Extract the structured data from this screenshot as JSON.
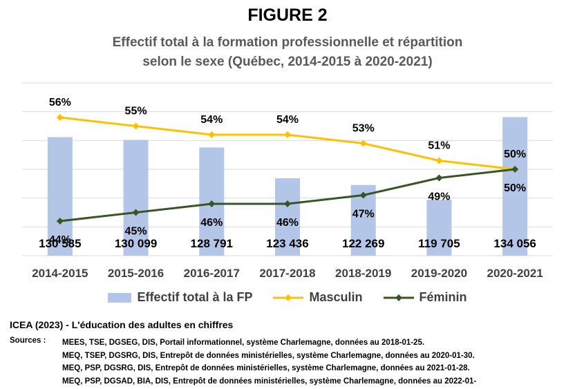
{
  "figure_label": "FIGURE 2",
  "subtitle_lines": [
    "Effectif total à la formation professionnelle et répartition",
    "selon le sexe (Québec, 2014-2015 à 2020-2021)"
  ],
  "colors": {
    "bars": "#b4c6e7",
    "masculin": "#ffc000",
    "feminin": "#375623",
    "gridline": "#d9d9d9"
  },
  "chart_data": {
    "type": "bar",
    "categories": [
      "2014-2015",
      "2015-2016",
      "2016-2017",
      "2017-2018",
      "2018-2019",
      "2019-2020",
      "2020-2021"
    ],
    "series": [
      {
        "name": "Effectif total à la FP",
        "type": "bar",
        "values": [
          130585,
          130099,
          128791,
          123436,
          122269,
          119705,
          134056
        ],
        "labels": [
          "130 585",
          "130 099",
          "128 791",
          "123 436",
          "122 269",
          "119 705",
          "134 056"
        ]
      },
      {
        "name": "Masculin",
        "type": "line",
        "axis": "secondary",
        "values": [
          56,
          55,
          54,
          54,
          53,
          51,
          50
        ],
        "labels": [
          "56%",
          "55%",
          "54%",
          "54%",
          "53%",
          "51%",
          "50%"
        ]
      },
      {
        "name": "Féminin",
        "type": "line",
        "axis": "secondary",
        "values": [
          44,
          45,
          46,
          46,
          47,
          49,
          50
        ],
        "labels": [
          "44%",
          "45%",
          "46%",
          "46%",
          "47%",
          "49%",
          "50%"
        ]
      }
    ],
    "bar_axis_range": [
      110000,
      140000
    ],
    "line_axis_range": [
      40,
      60
    ],
    "grid": true,
    "legend": "bottom"
  },
  "legend": {
    "total": "Effectif total à la FP",
    "masculin": "Masculin",
    "feminin": "Féminin"
  },
  "credit": "ICEA (2023) - L'éducation des adultes en chiffres",
  "sources_label": "Sources :",
  "sources": [
    "MEES, TSE, DGSEG, DIS, Portail informationnel, système Charlemagne, données au 2018-01-25.",
    "MEQ, TSEP, DGSRG, DIS, Entrepôt de données ministérielles, système Charlemagne, données au 2020-01-30.",
    "MEQ, PSP, DGSRG, DIS, Entrepôt de données ministérielles, système Charlemagne, données au 2021-01-28.",
    "MEQ, PSP, DGSAD, BIA, DIS, Entrepôt de données ministérielles, système Charlemagne, données au 2022-01-"
  ]
}
